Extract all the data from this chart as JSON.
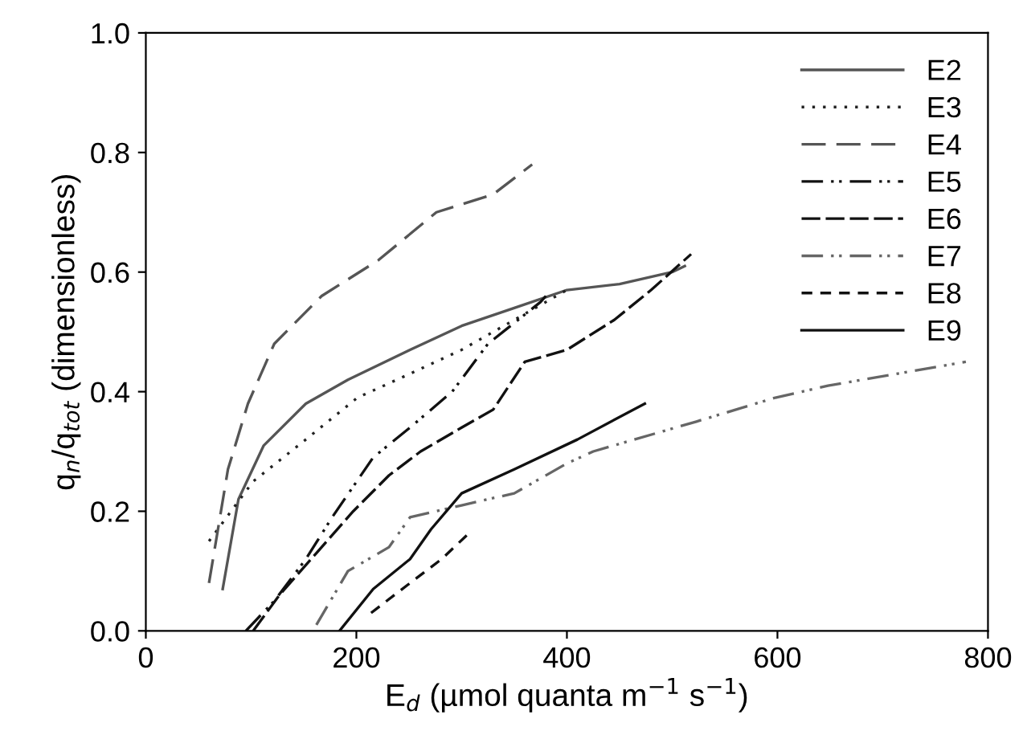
{
  "chart_data": {
    "type": "line",
    "xlabel": "E$_{d}$ (µmol quanta m$^{−1}$ s$^{−1}$)",
    "ylabel": "q$_{n}$/q$_{tot}$ (dimensionless)",
    "xlim": [
      0,
      800
    ],
    "ylim": [
      0,
      1.0
    ],
    "xticks": [
      0,
      200,
      400,
      600,
      800
    ],
    "yticks": [
      {
        "value": 0,
        "label": "0.0"
      },
      {
        "value": 0.2,
        "label": "0.2"
      },
      {
        "value": 0.4,
        "label": "0.4"
      },
      {
        "value": 0.6,
        "label": "0.6"
      },
      {
        "value": 0.8,
        "label": "0.8"
      },
      {
        "value": 1.0,
        "label": "1.0"
      }
    ],
    "grid": false,
    "legend": "top right",
    "marker": "none",
    "series": [
      {
        "name": "E2",
        "color": "#555555",
        "line_style": "solid",
        "x": [
          73,
          88,
          112,
          152,
          192,
          251,
          300,
          350,
          400,
          450,
          500,
          512
        ],
        "values": [
          0.07,
          0.22,
          0.31,
          0.38,
          0.42,
          0.47,
          0.51,
          0.54,
          0.57,
          0.58,
          0.6,
          0.61
        ]
      },
      {
        "name": "E3",
        "color": "#222222",
        "line_style": "dotted",
        "x": [
          60,
          102,
          152,
          201,
          251,
          300,
          350,
          390,
          400
        ],
        "values": [
          0.15,
          0.25,
          0.32,
          0.39,
          0.43,
          0.47,
          0.52,
          0.56,
          0.57
        ]
      },
      {
        "name": "E4",
        "color": "#555555",
        "line_style": "longdash",
        "x": [
          60,
          78,
          97,
          122,
          167,
          221,
          276,
          330,
          367
        ],
        "values": [
          0.08,
          0.27,
          0.38,
          0.48,
          0.56,
          0.62,
          0.7,
          0.73,
          0.78
        ]
      },
      {
        "name": "E5",
        "color": "#111111",
        "line_style": "dashdotdot",
        "x": [
          95,
          122,
          152,
          177,
          216,
          251,
          291,
          325,
          375,
          380
        ],
        "values": [
          0,
          0.05,
          0.12,
          0.19,
          0.29,
          0.34,
          0.4,
          0.48,
          0.55,
          0.56
        ]
      },
      {
        "name": "E6",
        "color": "#111111",
        "line_style": "longgap",
        "x": [
          102,
          127,
          162,
          197,
          231,
          261,
          300,
          330,
          360,
          400,
          445,
          480,
          518
        ],
        "values": [
          0,
          0.06,
          0.13,
          0.2,
          0.26,
          0.3,
          0.34,
          0.37,
          0.45,
          0.47,
          0.52,
          0.57,
          0.63
        ]
      },
      {
        "name": "E7",
        "color": "#666666",
        "line_style": "dashdotdot",
        "x": [
          162,
          192,
          231,
          251,
          300,
          350,
          400,
          425,
          523,
          598,
          648,
          779
        ],
        "values": [
          0.01,
          0.1,
          0.14,
          0.19,
          0.21,
          0.23,
          0.28,
          0.3,
          0.35,
          0.39,
          0.41,
          0.45
        ]
      },
      {
        "name": "E8",
        "color": "#111111",
        "line_style": "dashed",
        "x": [
          214,
          251,
          281,
          305
        ],
        "values": [
          0.03,
          0.08,
          0.12,
          0.16
        ]
      },
      {
        "name": "E9",
        "color": "#111111",
        "line_style": "solid",
        "x": [
          184,
          216,
          251,
          271,
          300,
          350,
          410,
          474
        ],
        "values": [
          0,
          0.07,
          0.12,
          0.17,
          0.23,
          0.27,
          0.32,
          0.38
        ]
      }
    ]
  }
}
